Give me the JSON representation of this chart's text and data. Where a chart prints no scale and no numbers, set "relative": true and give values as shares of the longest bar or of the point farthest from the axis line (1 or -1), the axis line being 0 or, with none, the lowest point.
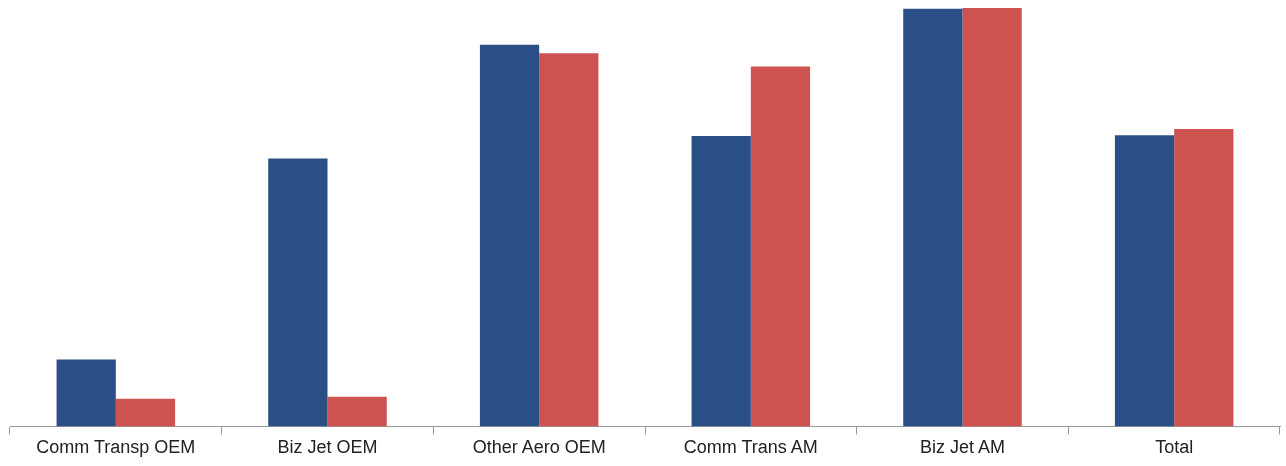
{
  "chart_data": {
    "type": "bar",
    "relative": true,
    "categories": [
      "Comm Transp OEM",
      "Biz Jet OEM",
      "Other Aero OEM",
      "Comm Trans AM",
      "Biz Jet AM",
      "Total"
    ],
    "series": [
      {
        "color": "#2a4f86",
        "values": [
          0.16,
          0.64,
          0.912,
          0.694,
          0.998,
          0.696
        ]
      },
      {
        "color": "#cd5350",
        "values": [
          0.066,
          0.071,
          0.892,
          0.86,
          1,
          0.711
        ]
      }
    ]
  }
}
